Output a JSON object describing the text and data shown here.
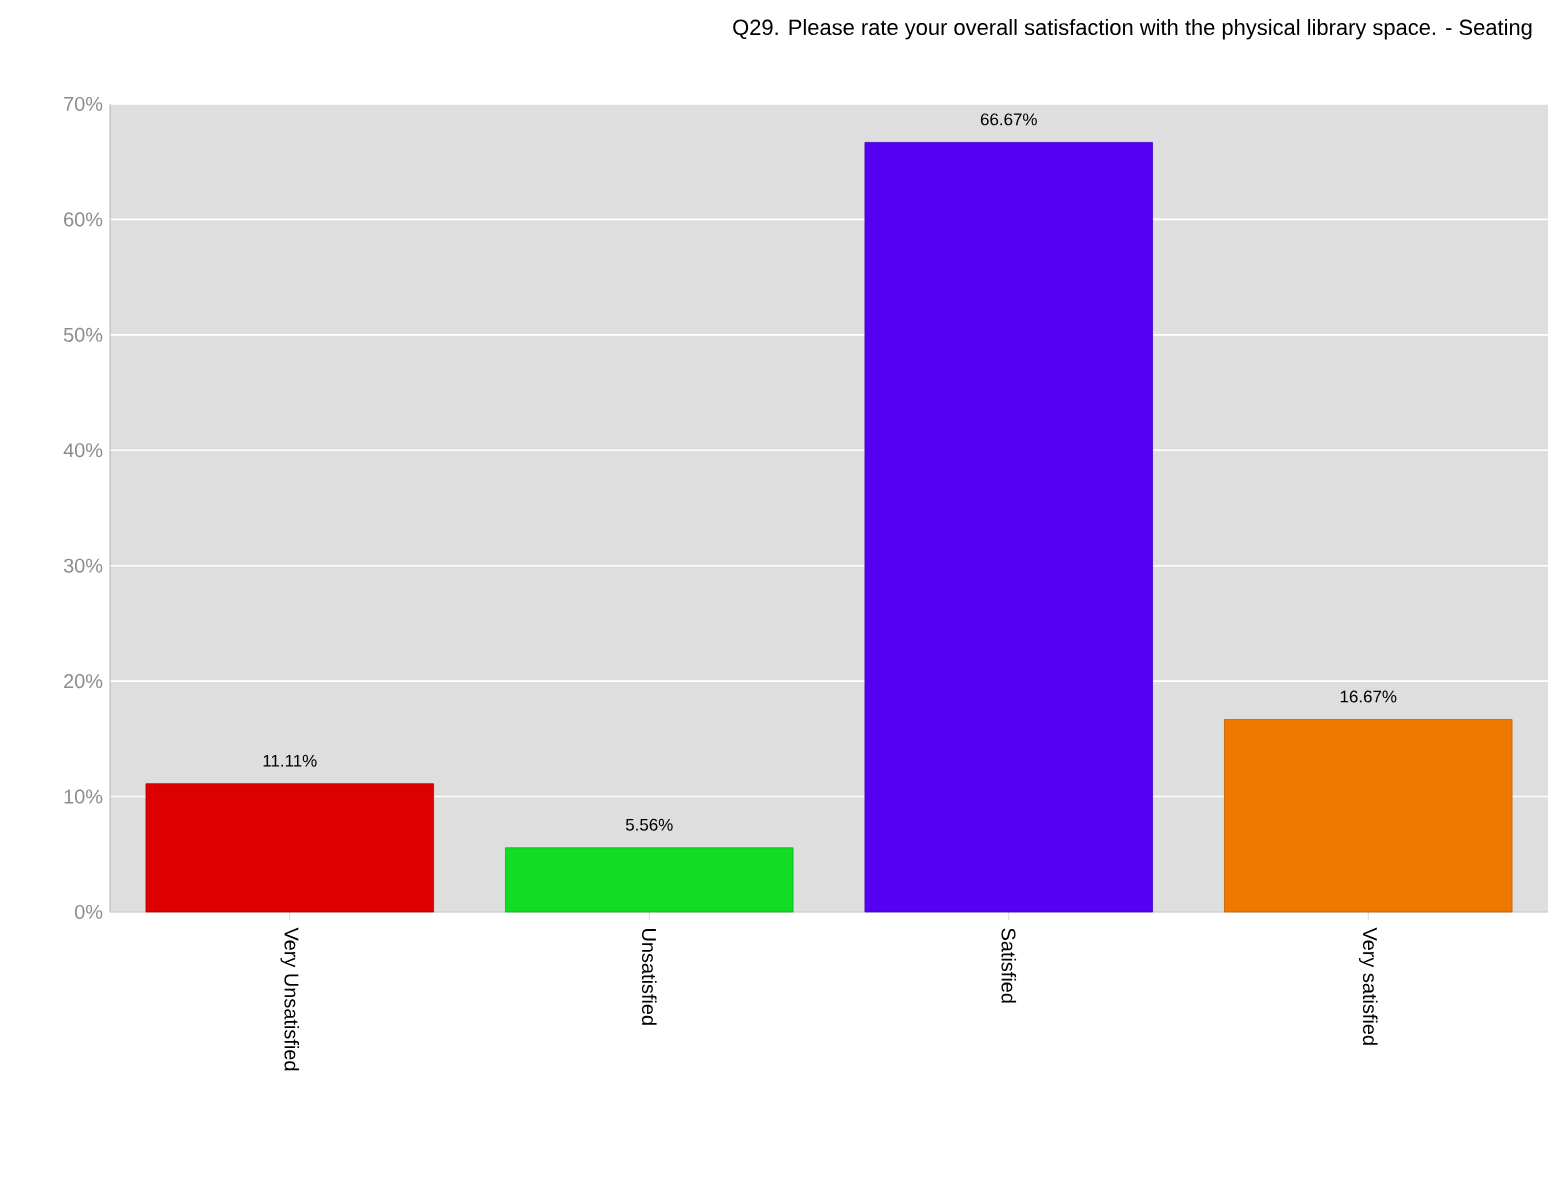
{
  "chart_data": {
    "type": "bar",
    "title": "Q29. Please rate your overall satisfaction with the physical library space. - Seating",
    "categories": [
      "Very Unsatisfied",
      "Unsatisfied",
      "Satisfied",
      "Very satisfied"
    ],
    "values": [
      11.11,
      5.56,
      66.67,
      16.67
    ],
    "colors": [
      "#dd0000",
      "#11dd22",
      "#5500f0",
      "#f07800"
    ],
    "value_labels": [
      "11.11%",
      "5.56%",
      "66.67%",
      "16.67%"
    ],
    "ylim": [
      0,
      70
    ],
    "yticks": [
      {
        "value": 0,
        "label": "0%"
      },
      {
        "value": 10,
        "label": "10%"
      },
      {
        "value": 20,
        "label": "20%"
      },
      {
        "value": 30,
        "label": "30%"
      },
      {
        "value": 40,
        "label": "40%"
      },
      {
        "value": 50,
        "label": "50%"
      },
      {
        "value": 60,
        "label": "60%"
      },
      {
        "value": 70,
        "label": "70%"
      }
    ],
    "grid": "y"
  }
}
